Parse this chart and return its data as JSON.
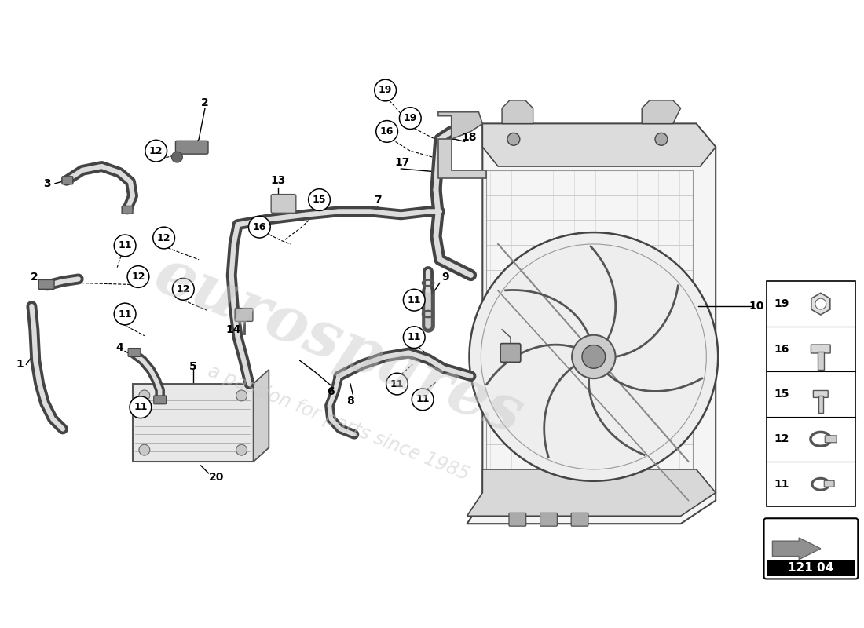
{
  "background_color": "#ffffff",
  "fig_width": 11.0,
  "fig_height": 8.0,
  "dpi": 100,
  "watermark_text1": "eurospares",
  "watermark_text2": "a passion for parts since 1985",
  "part_code": "121 04",
  "legend_items": [
    19,
    16,
    15,
    12,
    11
  ]
}
